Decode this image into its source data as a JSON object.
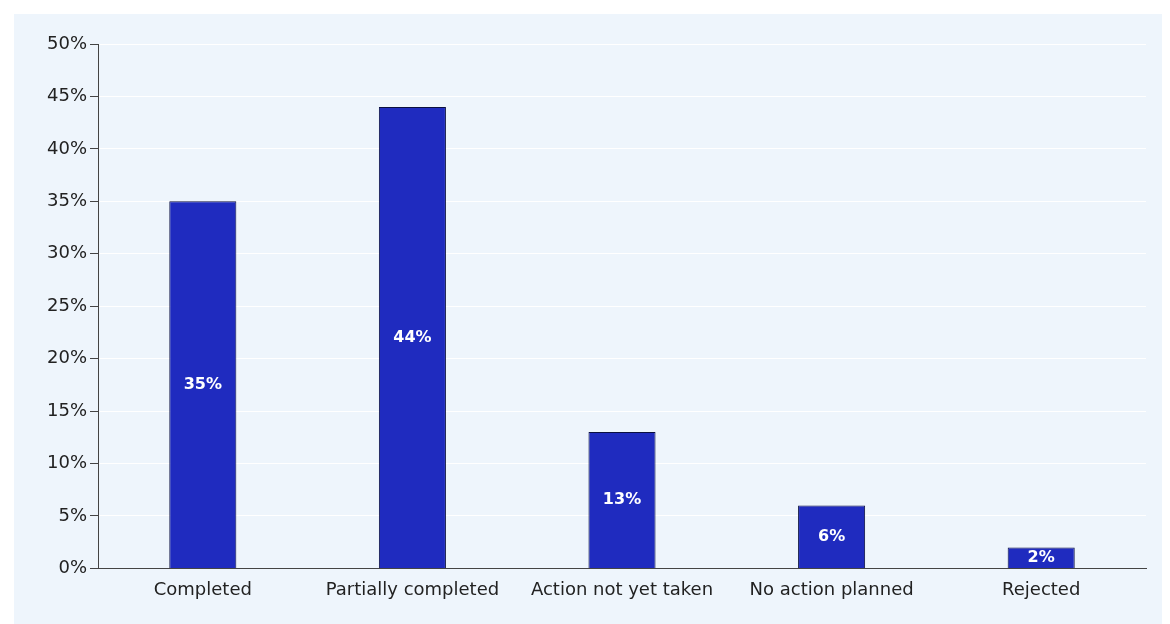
{
  "chart_data": {
    "type": "bar",
    "categories": [
      "Completed",
      "Partially completed",
      "Action not yet taken",
      "No action planned",
      "Rejected"
    ],
    "values": [
      35,
      44,
      13,
      6,
      2
    ],
    "value_labels": [
      "35%",
      "44%",
      "13%",
      "6%",
      "2%"
    ],
    "color": "#1f2bbf",
    "ylim": [
      0,
      50
    ],
    "yticks": [
      {
        "value": 0,
        "label": "0%"
      },
      {
        "value": 5,
        "label": "5%"
      },
      {
        "value": 10,
        "label": "10%"
      },
      {
        "value": 15,
        "label": "15%"
      },
      {
        "value": 20,
        "label": "20%"
      },
      {
        "value": 25,
        "label": "25%"
      },
      {
        "value": 30,
        "label": "30%"
      },
      {
        "value": 35,
        "label": "35%"
      },
      {
        "value": 40,
        "label": "40%"
      },
      {
        "value": 45,
        "label": "45%"
      },
      {
        "value": 50,
        "label": "50%"
      }
    ],
    "grid": "y",
    "legend": false
  }
}
